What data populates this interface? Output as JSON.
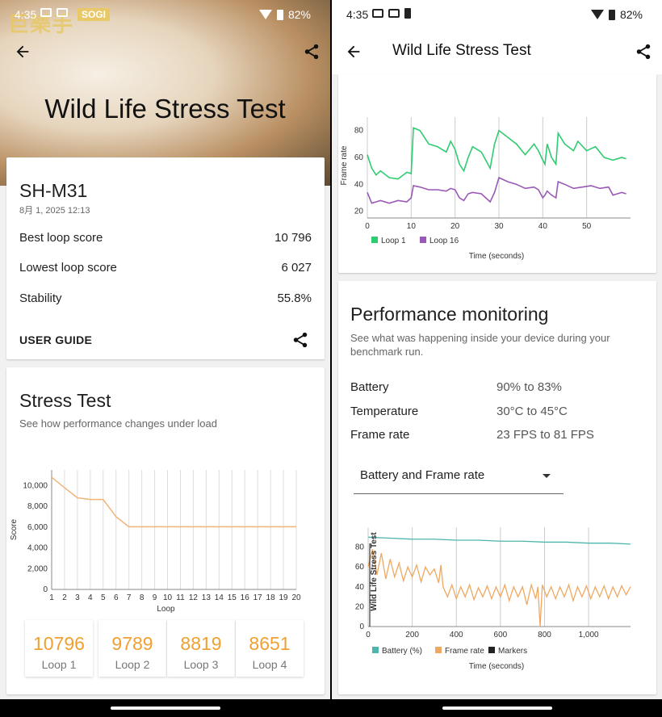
{
  "status": {
    "time": "4:35",
    "battery": "82%"
  },
  "left": {
    "watermark": "巨樂手",
    "watermark_tag": "SOGI",
    "hero_title": "Wild Life Stress Test",
    "device": "SH-M31",
    "date": "8月 1, 2025 12:13",
    "best_label": "Best loop score",
    "best_value": "10 796",
    "lowest_label": "Lowest loop score",
    "lowest_value": "6 027",
    "stability_label": "Stability",
    "stability_value": "55.8%",
    "user_guide": "USER GUIDE",
    "stress_title": "Stress Test",
    "stress_sub": "See how performance changes under load",
    "loops": [
      {
        "value": "10796",
        "label": "Loop 1"
      },
      {
        "value": "9789",
        "label": "Loop 2"
      },
      {
        "value": "8819",
        "label": "Loop 3"
      },
      {
        "value": "8651",
        "label": "Loop 4"
      }
    ]
  },
  "right": {
    "title": "Wild Life Stress Test",
    "perf_title": "Performance monitoring",
    "perf_sub": "See what was happening inside your device during your benchmark run.",
    "battery_label": "Battery",
    "battery_value": "90% to 83%",
    "temp_label": "Temperature",
    "temp_value": "30°C to 45°C",
    "fps_label": "Frame rate",
    "fps_value": "23 FPS to 81 FPS",
    "dropdown": "Battery and Frame rate"
  },
  "chart_data": [
    {
      "type": "line",
      "ylabel": "Score",
      "xlabel": "Loop",
      "x": [
        1,
        2,
        3,
        4,
        5,
        6,
        7,
        8,
        9,
        10,
        11,
        12,
        13,
        14,
        15,
        16,
        17,
        18,
        19,
        20
      ],
      "yticks": [
        "0",
        "2,000",
        "4,000",
        "6,000",
        "8,000",
        "10,000"
      ],
      "series": [
        {
          "values": [
            10796,
            9789,
            8819,
            8651,
            8651,
            7000,
            6030,
            6030,
            6030,
            6030,
            6030,
            6030,
            6030,
            6030,
            6030,
            6027,
            6027,
            6027,
            6027,
            6027
          ],
          "color": "#f0b47a"
        }
      ],
      "ylim": [
        0,
        11500
      ],
      "grid": "vertical"
    },
    {
      "type": "line",
      "ylabel": "Frame rate",
      "xlabel": "Time (seconds)",
      "yticks": [
        "20",
        "40",
        "60",
        "80"
      ],
      "xticks": [
        "0",
        "10",
        "20",
        "30",
        "40",
        "50"
      ],
      "xlim": [
        0,
        60
      ],
      "ylim": [
        15,
        90
      ],
      "series": [
        {
          "name": "Loop 1",
          "color": "#2ecc71",
          "points": [
            [
              0,
              62
            ],
            [
              1,
              52
            ],
            [
              2,
              47
            ],
            [
              3,
              50
            ],
            [
              5,
              45
            ],
            [
              7,
              44
            ],
            [
              9,
              49
            ],
            [
              10,
              48
            ],
            [
              10.5,
              82
            ],
            [
              12,
              80
            ],
            [
              14,
              70
            ],
            [
              16,
              68
            ],
            [
              18,
              64
            ],
            [
              19,
              72
            ],
            [
              20,
              66
            ],
            [
              21,
              55
            ],
            [
              22,
              50
            ],
            [
              23,
              60
            ],
            [
              24,
              68
            ],
            [
              26,
              64
            ],
            [
              28,
              52
            ],
            [
              29,
              70
            ],
            [
              30,
              80
            ],
            [
              32,
              75
            ],
            [
              34,
              70
            ],
            [
              36,
              62
            ],
            [
              38,
              70
            ],
            [
              39,
              65
            ],
            [
              40,
              58
            ],
            [
              40.5,
              55
            ],
            [
              41,
              70
            ],
            [
              42,
              60
            ],
            [
              43,
              55
            ],
            [
              43.5,
              78
            ],
            [
              45,
              70
            ],
            [
              47,
              65
            ],
            [
              48,
              72
            ],
            [
              50,
              65
            ],
            [
              52,
              68
            ],
            [
              54,
              60
            ],
            [
              56,
              58
            ],
            [
              58,
              60
            ],
            [
              59,
              59
            ]
          ]
        },
        {
          "name": "Loop 16",
          "color": "#9b59b6",
          "points": [
            [
              0,
              34
            ],
            [
              1,
              26
            ],
            [
              3,
              28
            ],
            [
              5,
              26
            ],
            [
              7,
              28
            ],
            [
              9,
              27
            ],
            [
              10,
              30
            ],
            [
              10.5,
              39
            ],
            [
              12,
              38
            ],
            [
              14,
              36
            ],
            [
              16,
              36
            ],
            [
              18,
              35
            ],
            [
              19,
              37
            ],
            [
              20,
              36
            ],
            [
              21,
              30
            ],
            [
              22,
              28
            ],
            [
              23,
              33
            ],
            [
              24,
              34
            ],
            [
              26,
              33
            ],
            [
              28,
              27
            ],
            [
              29,
              34
            ],
            [
              30,
              45
            ],
            [
              32,
              42
            ],
            [
              34,
              40
            ],
            [
              36,
              37
            ],
            [
              38,
              38
            ],
            [
              39,
              36
            ],
            [
              40,
              30
            ],
            [
              40.5,
              32
            ],
            [
              41,
              35
            ],
            [
              42,
              32
            ],
            [
              43,
              30
            ],
            [
              43.5,
              42
            ],
            [
              45,
              40
            ],
            [
              47,
              37
            ],
            [
              49,
              38
            ],
            [
              51,
              39
            ],
            [
              53,
              37
            ],
            [
              55,
              38
            ],
            [
              56,
              32
            ],
            [
              58,
              34
            ],
            [
              59,
              33
            ]
          ]
        }
      ]
    },
    {
      "type": "line",
      "xlabel": "Time (seconds)",
      "yticks": [
        "0",
        "20",
        "40",
        "60",
        "80"
      ],
      "xticks": [
        "0",
        "200",
        "400",
        "600",
        "800",
        "1,000"
      ],
      "xlim": [
        0,
        1190
      ],
      "ylim": [
        0,
        100
      ],
      "series": [
        {
          "name": "Battery (%)",
          "color": "#4db6ac",
          "points": [
            [
              0,
              90
            ],
            [
              100,
              89
            ],
            [
              200,
              88
            ],
            [
              300,
              88
            ],
            [
              400,
              87
            ],
            [
              500,
              87
            ],
            [
              600,
              86
            ],
            [
              700,
              86
            ],
            [
              800,
              85
            ],
            [
              900,
              85
            ],
            [
              1000,
              84
            ],
            [
              1100,
              84
            ],
            [
              1190,
              83
            ]
          ]
        },
        {
          "name": "Frame rate",
          "color": "#f0a860",
          "points": [
            [
              0,
              60
            ],
            [
              20,
              78
            ],
            [
              40,
              52
            ],
            [
              60,
              74
            ],
            [
              80,
              48
            ],
            [
              100,
              68
            ],
            [
              120,
              50
            ],
            [
              140,
              64
            ],
            [
              160,
              46
            ],
            [
              180,
              60
            ],
            [
              200,
              50
            ],
            [
              220,
              62
            ],
            [
              240,
              45
            ],
            [
              260,
              60
            ],
            [
              280,
              52
            ],
            [
              300,
              58
            ],
            [
              320,
              44
            ],
            [
              330,
              62
            ],
            [
              340,
              40
            ],
            [
              360,
              30
            ],
            [
              380,
              42
            ],
            [
              400,
              28
            ],
            [
              420,
              40
            ],
            [
              440,
              30
            ],
            [
              460,
              42
            ],
            [
              480,
              27
            ],
            [
              500,
              39
            ],
            [
              520,
              30
            ],
            [
              540,
              41
            ],
            [
              560,
              28
            ],
            [
              580,
              40
            ],
            [
              600,
              30
            ],
            [
              620,
              42
            ],
            [
              640,
              26
            ],
            [
              660,
              40
            ],
            [
              680,
              30
            ],
            [
              700,
              40
            ],
            [
              720,
              22
            ],
            [
              740,
              42
            ],
            [
              760,
              28
            ],
            [
              770,
              40
            ],
            [
              780,
              0
            ],
            [
              790,
              42
            ],
            [
              810,
              30
            ],
            [
              830,
              40
            ],
            [
              850,
              28
            ],
            [
              870,
              40
            ],
            [
              890,
              30
            ],
            [
              910,
              42
            ],
            [
              930,
              26
            ],
            [
              950,
              40
            ],
            [
              970,
              30
            ],
            [
              990,
              41
            ],
            [
              1010,
              28
            ],
            [
              1030,
              40
            ],
            [
              1050,
              30
            ],
            [
              1070,
              41
            ],
            [
              1090,
              28
            ],
            [
              1110,
              40
            ],
            [
              1130,
              30
            ],
            [
              1150,
              41
            ],
            [
              1170,
              32
            ],
            [
              1190,
              40
            ]
          ]
        }
      ],
      "markers_label": "Markers",
      "marker_text": "Wild Life Stress Test"
    }
  ]
}
